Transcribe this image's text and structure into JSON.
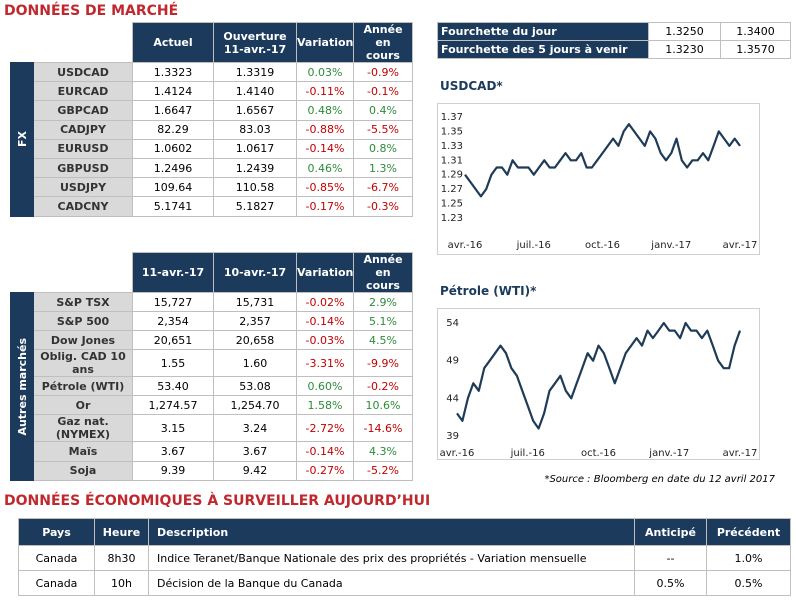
{
  "title": "DONNÉES DE MARCHÉ",
  "fx_table": {
    "side_label": "FX",
    "header": [
      "Actuel",
      "Ouverture\n11-avr.-17",
      "Variation",
      "Année en\ncours"
    ],
    "rows": [
      [
        "USDCAD",
        "1.3323",
        "1.3319",
        "0.03%",
        "-0.9%"
      ],
      [
        "EURCAD",
        "1.4124",
        "1.4140",
        "-0.11%",
        "-0.1%"
      ],
      [
        "GBPCAD",
        "1.6647",
        "1.6567",
        "0.48%",
        "0.4%"
      ],
      [
        "CADJPY",
        "82.29",
        "83.03",
        "-0.88%",
        "-5.5%"
      ],
      [
        "EURUSD",
        "1.0602",
        "1.0617",
        "-0.14%",
        "0.8%"
      ],
      [
        "GBPUSD",
        "1.2496",
        "1.2439",
        "0.46%",
        "1.3%"
      ],
      [
        "USDJPY",
        "109.64",
        "110.58",
        "-0.85%",
        "-6.7%"
      ],
      [
        "CADCNY",
        "5.1741",
        "5.1827",
        "-0.17%",
        "-0.3%"
      ]
    ]
  },
  "range_table": {
    "rows": [
      [
        "Fourchette du jour",
        "1.3250",
        "1.3400"
      ],
      [
        "Fourchette des 5 jours à venir",
        "1.3230",
        "1.3570"
      ]
    ]
  },
  "markets_table": {
    "side_label": "Autres marchés",
    "header": [
      "11-avr.-17",
      "10-avr.-17",
      "Variation",
      "Année en\ncours"
    ],
    "rows": [
      [
        "S&P TSX",
        "15,727",
        "15,731",
        "-0.02%",
        "2.9%"
      ],
      [
        "S&P 500",
        "2,354",
        "2,357",
        "-0.14%",
        "5.1%"
      ],
      [
        "Dow Jones",
        "20,651",
        "20,658",
        "-0.03%",
        "4.5%"
      ],
      [
        "Oblig. CAD 10 ans",
        "1.55",
        "1.60",
        "-3.31%",
        "-9.9%"
      ],
      [
        "Pétrole (WTI)",
        "53.40",
        "53.08",
        "0.60%",
        "-0.2%"
      ],
      [
        "Or",
        "1,274.57",
        "1,254.70",
        "1.58%",
        "10.6%"
      ],
      [
        "Gaz nat. (NYMEX)",
        "3.15",
        "3.24",
        "-2.72%",
        "-14.6%"
      ],
      [
        "Maïs",
        "3.67",
        "3.67",
        "-0.14%",
        "4.3%"
      ],
      [
        "Soja",
        "9.39",
        "9.42",
        "-0.27%",
        "-5.2%"
      ]
    ]
  },
  "chart_data": [
    {
      "type": "line",
      "title": "USDCAD*",
      "color": "#1f3b57",
      "categories": [
        "avr.-16",
        null,
        null,
        null,
        null,
        null,
        null,
        null,
        null,
        null,
        null,
        null,
        null,
        "juil.-16",
        null,
        null,
        null,
        null,
        null,
        null,
        null,
        null,
        null,
        null,
        null,
        null,
        "oct.-16",
        null,
        null,
        null,
        null,
        null,
        null,
        null,
        null,
        null,
        null,
        null,
        null,
        "janv.-17",
        null,
        null,
        null,
        null,
        null,
        null,
        null,
        null,
        null,
        null,
        null,
        null,
        "avr.-17"
      ],
      "values": [
        1.29,
        1.28,
        1.27,
        1.26,
        1.27,
        1.29,
        1.3,
        1.3,
        1.29,
        1.31,
        1.3,
        1.3,
        1.3,
        1.29,
        1.3,
        1.31,
        1.3,
        1.3,
        1.31,
        1.32,
        1.31,
        1.31,
        1.32,
        1.3,
        1.3,
        1.31,
        1.32,
        1.33,
        1.34,
        1.33,
        1.35,
        1.36,
        1.35,
        1.34,
        1.33,
        1.35,
        1.34,
        1.32,
        1.31,
        1.32,
        1.34,
        1.31,
        1.3,
        1.31,
        1.31,
        1.32,
        1.31,
        1.33,
        1.35,
        1.34,
        1.33,
        1.34,
        1.33
      ],
      "ylim": [
        1.23,
        1.37
      ],
      "yticks": [
        1.37,
        1.35,
        1.33,
        1.31,
        1.29,
        1.27,
        1.25,
        1.23
      ]
    },
    {
      "type": "line",
      "title": "Pétrole (WTI)*",
      "color": "#1f3b57",
      "categories": [
        "avr.-16",
        null,
        null,
        null,
        null,
        null,
        null,
        null,
        null,
        null,
        null,
        null,
        null,
        "juil.-16",
        null,
        null,
        null,
        null,
        null,
        null,
        null,
        null,
        null,
        null,
        null,
        null,
        "oct.-16",
        null,
        null,
        null,
        null,
        null,
        null,
        null,
        null,
        null,
        null,
        null,
        null,
        "janv.-17",
        null,
        null,
        null,
        null,
        null,
        null,
        null,
        null,
        null,
        null,
        null,
        null,
        "avr.-17"
      ],
      "values": [
        42,
        41,
        44,
        46,
        45,
        48,
        49,
        50,
        51,
        50,
        48,
        47,
        45,
        43,
        41,
        40,
        42,
        45,
        46,
        47,
        45,
        44,
        46,
        48,
        50,
        49,
        51,
        50,
        48,
        46,
        48,
        50,
        51,
        52,
        51,
        53,
        52,
        53,
        54,
        53,
        53,
        52,
        54,
        53,
        53,
        52,
        53,
        51,
        49,
        48,
        48,
        51,
        53
      ],
      "ylim": [
        39,
        55
      ],
      "yticks": [
        54,
        49,
        44,
        39
      ]
    }
  ],
  "source": "*Source : Bloomberg en date du  12 avril 2017",
  "econ": {
    "title": "DONNÉES ÉCONOMIQUES À SURVEILLER AUJOURD’HUI",
    "header": [
      "Pays",
      "Heure",
      "Description",
      "Anticipé",
      "Précédent"
    ],
    "rows": [
      [
        "Canada",
        "8h30",
        "Indice Teranet/Banque Nationale des prix des propriétés - Variation mensuelle",
        "--",
        "1.0%"
      ],
      [
        "Canada",
        "10h",
        "Décision de la Banque du Canada",
        "0.5%",
        "0.5%"
      ]
    ]
  }
}
